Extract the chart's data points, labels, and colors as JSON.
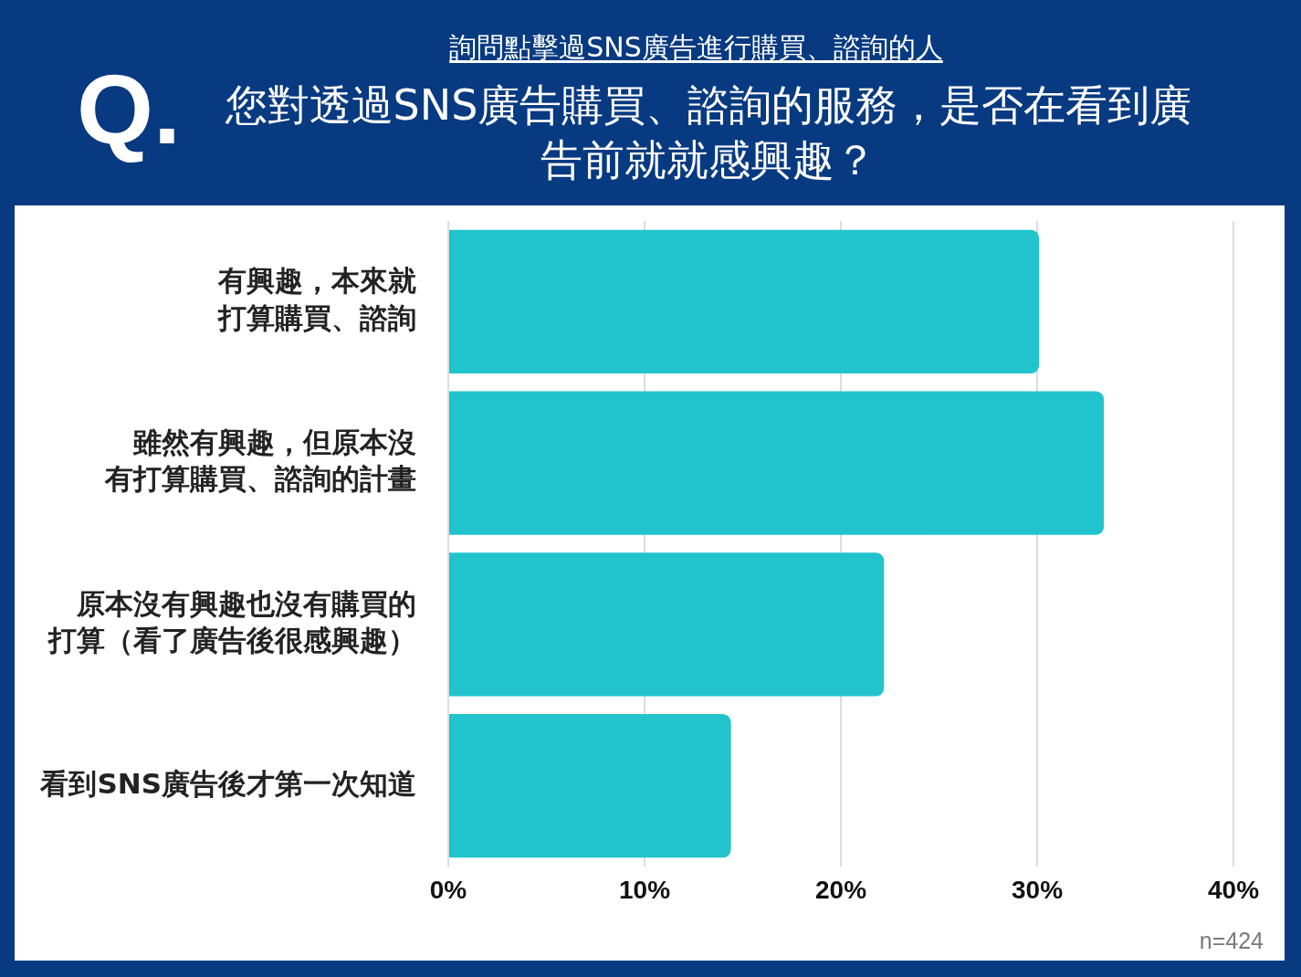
{
  "chart_data": {
    "type": "bar",
    "orientation": "horizontal",
    "title": "您對透過SNS廣告購買、諮詢的服務，是否在看到廣告前就就感興趣？",
    "subtitle": "詢問點擊過SNS廣告進行購買、諮詢的人",
    "categories": [
      "有興趣，本來就打算購買、諮詢",
      "雖然有興趣，但原本沒有打算購買、諮詢的計畫",
      "原本沒有興趣也沒有購買的打算（看了廣告後很感興趣）",
      "看到SNS廣告後才第一次知道"
    ],
    "values": [
      30.1,
      33.4,
      22.2,
      14.4
    ],
    "color": "#21c4cc",
    "xlim": [
      0,
      40
    ],
    "xticks": [
      {
        "value": 0,
        "label": "0%"
      },
      {
        "value": 10,
        "label": "10%"
      },
      {
        "value": 20,
        "label": "20%"
      },
      {
        "value": 30,
        "label": "30%"
      },
      {
        "value": 40,
        "label": "40%"
      }
    ],
    "grid": "x",
    "annotations": [
      "Q.",
      "n=424"
    ]
  }
}
